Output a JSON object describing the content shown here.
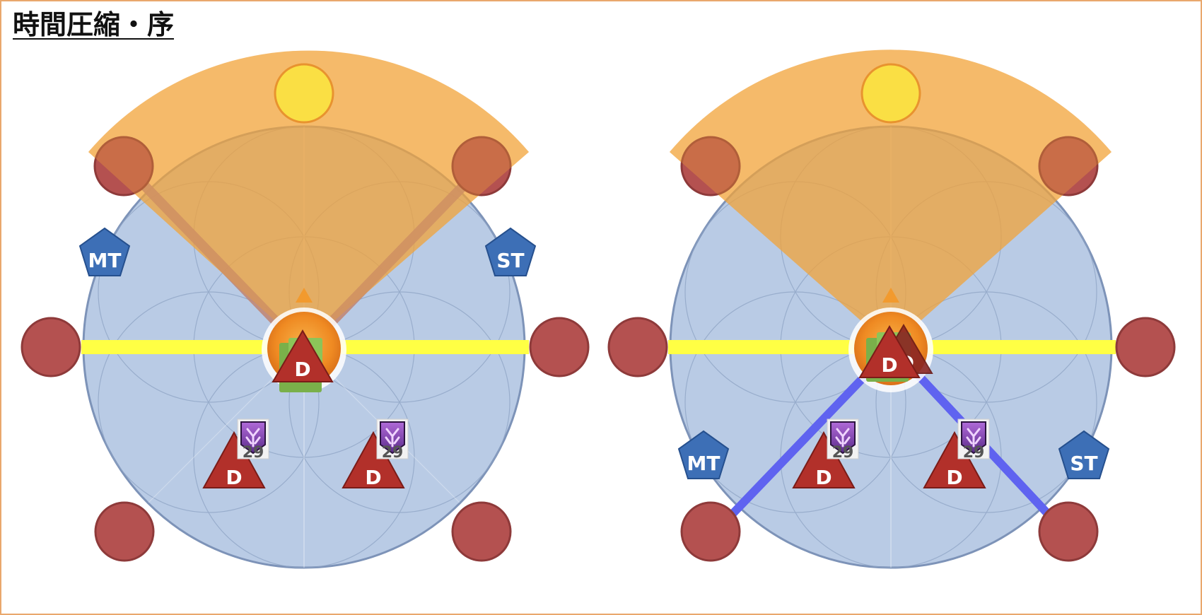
{
  "title": "時間圧縮・序",
  "colors": {
    "frame": "#e9a86d",
    "arena_fill": "#b9cbe5",
    "arena_stroke": "#7d93b8",
    "cone": "#f2a33a",
    "yellow_marker": "#ffff4a",
    "red_marker": "#b45150",
    "tank": "#3d6fb6",
    "dps": "#b2302a",
    "tether_left": "#c08878",
    "tether_right": "#5f63f0",
    "line": "#ffff44"
  },
  "labels": {
    "mt": "MT",
    "st": "ST",
    "dps": "D",
    "stack_count": "29"
  },
  "icons": {
    "debuff": "purple-debuff-icon",
    "boss": "boss-center-icon"
  }
}
